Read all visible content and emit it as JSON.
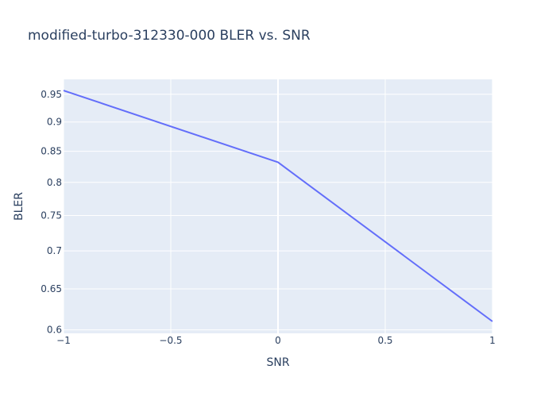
{
  "chart_data": {
    "type": "line",
    "title": "modified-turbo-312330-000 BLER vs. SNR",
    "xlabel": "SNR",
    "ylabel": "BLER",
    "y_scale": "log",
    "xlim": [
      -1,
      1
    ],
    "ylim": [
      0.596,
      0.978
    ],
    "x_ticks": [
      -1,
      -0.5,
      0,
      0.5,
      1
    ],
    "x_tick_labels": [
      "−1",
      "−0.5",
      "0",
      "0.5",
      "1"
    ],
    "y_ticks": [
      0.6,
      0.65,
      0.7,
      0.75,
      0.8,
      0.85,
      0.9,
      0.95
    ],
    "y_tick_labels": [
      "0.6",
      "0.65",
      "0.7",
      "0.75",
      "0.8",
      "0.85",
      "0.9",
      "0.95"
    ],
    "grid": true,
    "series": [
      {
        "x": [
          -1,
          0,
          1
        ],
        "y": [
          0.957,
          0.832,
          0.61
        ],
        "color": "#636efa"
      }
    ],
    "colors": {
      "plot_background": "#e5ecf6",
      "text": "#2a3f5f",
      "grid": "#ffffff"
    }
  }
}
